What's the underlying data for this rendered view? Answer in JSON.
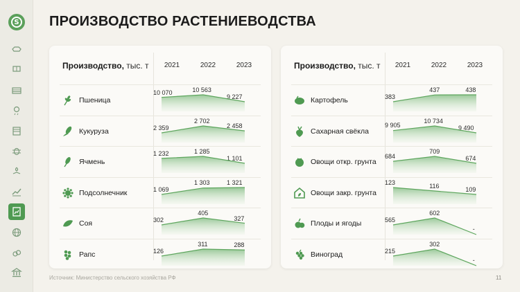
{
  "page": {
    "title": "ПРОИЗВОДСТВО РАСТЕНИЕВОДСТВА",
    "source": "Источник: Министерство сельского хозяйства РФ",
    "page_number": "11",
    "accent_color": "#4f9a52"
  },
  "sidebar": {
    "logo_letter": "S",
    "items": [
      {
        "icon": "cow-icon"
      },
      {
        "icon": "tractor-icon"
      },
      {
        "icon": "warehouse-icon"
      },
      {
        "icon": "weather-icon"
      },
      {
        "icon": "calendar-icon"
      },
      {
        "icon": "bug-icon"
      },
      {
        "icon": "hands-plant-icon"
      },
      {
        "icon": "growth-chart-icon"
      },
      {
        "icon": "document-chart-icon",
        "active": true
      },
      {
        "icon": "globe-icon"
      },
      {
        "icon": "fruit-icon"
      },
      {
        "icon": "bank-icon"
      }
    ]
  },
  "left_table": {
    "header": "Производство,",
    "unit": "тыс. т",
    "years": [
      "2021",
      "2022",
      "2023"
    ]
  },
  "right_table": {
    "header": "Производство,",
    "unit": "тыс. т",
    "years": [
      "2021",
      "2022",
      "2023"
    ]
  },
  "chart_data": [
    {
      "type": "area",
      "title": "Производство, тыс. т",
      "categories": [
        "2021",
        "2022",
        "2023"
      ],
      "series": [
        {
          "name": "Пшеница",
          "values": [
            10070,
            10563,
            9227
          ],
          "labels": [
            "10 070",
            "10 563",
            "9 227"
          ],
          "icon": "wheat-icon"
        },
        {
          "name": "Кукуруза",
          "values": [
            2359,
            2702,
            2458
          ],
          "labels": [
            "2 359",
            "2 702",
            "2 458"
          ],
          "icon": "corn-icon"
        },
        {
          "name": "Ячмень",
          "values": [
            1232,
            1285,
            1101
          ],
          "labels": [
            "1 232",
            "1 285",
            "1 101"
          ],
          "icon": "barley-icon"
        },
        {
          "name": "Подсолнечник",
          "values": [
            1069,
            1303,
            1321
          ],
          "labels": [
            "1 069",
            "1 303",
            "1 321"
          ],
          "icon": "sunflower-icon"
        },
        {
          "name": "Соя",
          "values": [
            302,
            405,
            327
          ],
          "labels": [
            "302",
            "405",
            "327"
          ],
          "icon": "soy-icon"
        },
        {
          "name": "Рапс",
          "values": [
            126,
            311,
            288
          ],
          "labels": [
            "126",
            "311",
            "288"
          ],
          "icon": "rapeseed-icon"
        }
      ]
    },
    {
      "type": "area",
      "title": "Производство, тыс. т",
      "categories": [
        "2021",
        "2022",
        "2023"
      ],
      "series": [
        {
          "name": "Картофель",
          "values": [
            383,
            437,
            438
          ],
          "labels": [
            "383",
            "437",
            "438"
          ],
          "icon": "potato-icon"
        },
        {
          "name": "Сахарная свёкла",
          "values": [
            9905,
            10734,
            9490
          ],
          "labels": [
            "9 905",
            "10 734",
            "9 490"
          ],
          "icon": "beet-icon"
        },
        {
          "name": "Овощи откр. грунта",
          "values": [
            684,
            709,
            674
          ],
          "labels": [
            "684",
            "709",
            "674"
          ],
          "icon": "tomato-icon"
        },
        {
          "name": "Овощи закр. грунта",
          "values": [
            123,
            116,
            109
          ],
          "labels": [
            "123",
            "116",
            "109"
          ],
          "icon": "greenhouse-icon"
        },
        {
          "name": "Плоды и ягоды",
          "values": [
            565,
            602,
            null
          ],
          "labels": [
            "565",
            "602",
            "-"
          ],
          "icon": "fruit-berry-icon"
        },
        {
          "name": "Виноград",
          "values": [
            215,
            302,
            null
          ],
          "labels": [
            "215",
            "302",
            "-"
          ],
          "icon": "grape-icon"
        }
      ]
    }
  ]
}
